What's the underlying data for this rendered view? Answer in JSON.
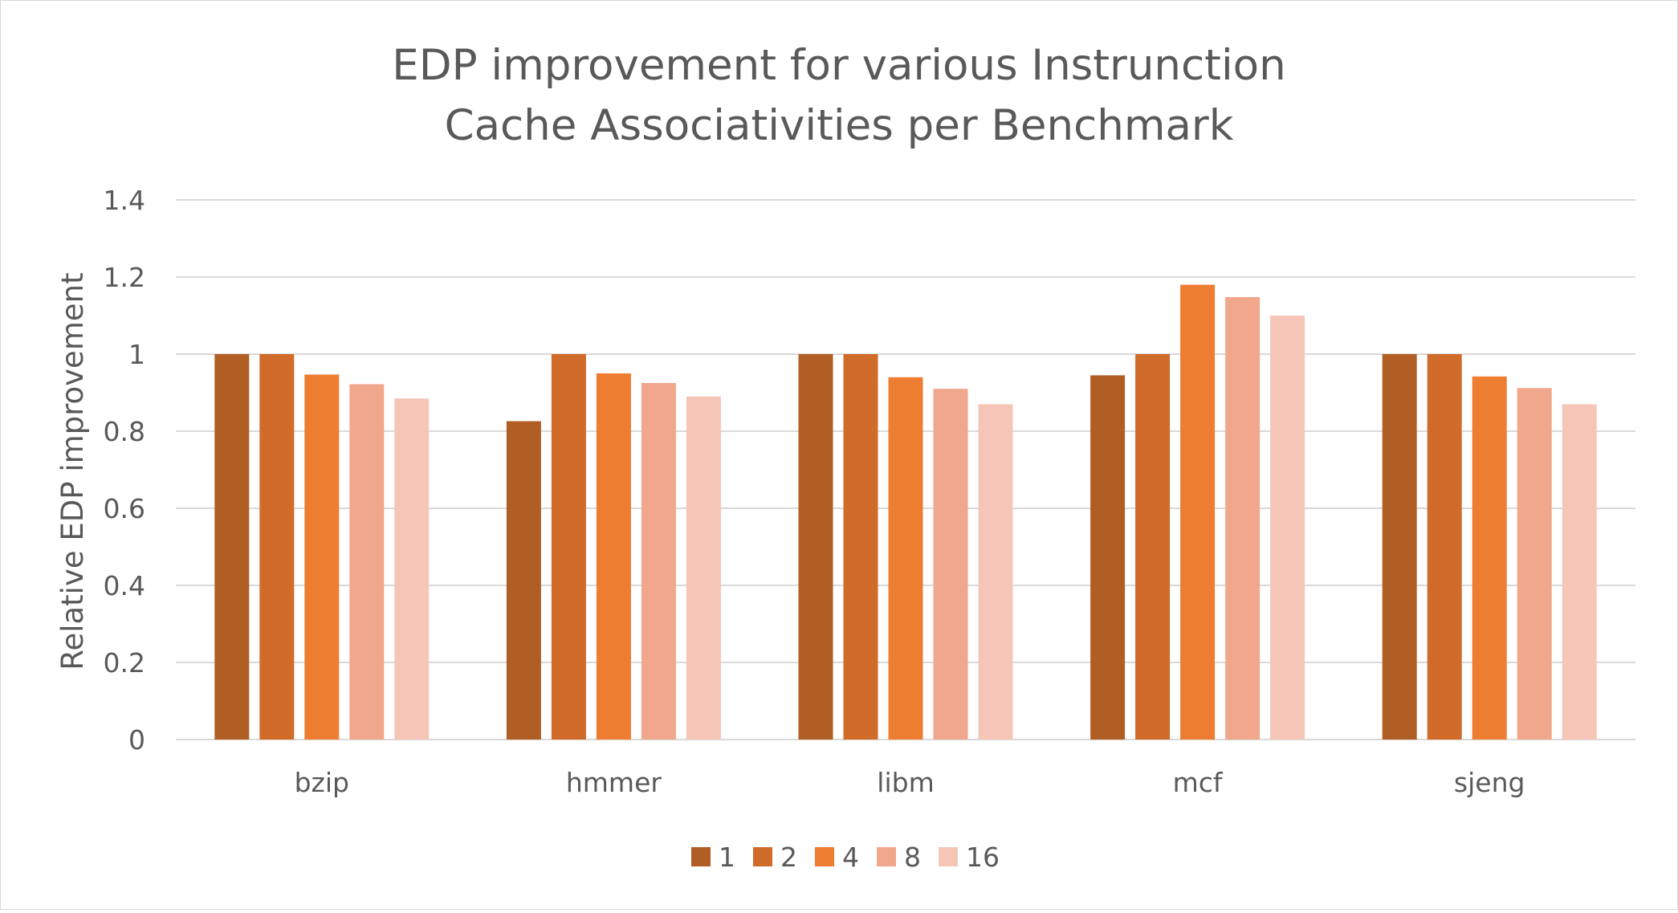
{
  "chart_data": {
    "type": "bar",
    "title_lines": [
      "EDP improvement for various Instrunction",
      "Cache Associativities per Benchmark"
    ],
    "xlabel": "",
    "ylabel": "Relative EDP improvement",
    "ylim": [
      0,
      1.4
    ],
    "yticks": [
      "0",
      "0.2",
      "0.4",
      "0.6",
      "0.8",
      "1",
      "1.2",
      "1.4"
    ],
    "ytick_values": [
      0,
      0.2,
      0.4,
      0.6,
      0.8,
      1.0,
      1.2,
      1.4
    ],
    "grid": true,
    "legend_position": "bottom",
    "categories": [
      "bzip",
      "hmmer",
      "libm",
      "mcf",
      "sjeng"
    ],
    "series": [
      {
        "name": "1",
        "color": "#b15e24",
        "values": [
          1.0,
          0.826,
          1.0,
          0.945,
          1.0
        ]
      },
      {
        "name": "2",
        "color": "#d06b29",
        "values": [
          1.0,
          1.0,
          1.0,
          1.0,
          1.0
        ]
      },
      {
        "name": "4",
        "color": "#ed7d31",
        "values": [
          0.947,
          0.95,
          0.94,
          1.18,
          0.942
        ]
      },
      {
        "name": "8",
        "color": "#f1a78b",
        "values": [
          0.922,
          0.925,
          0.91,
          1.148,
          0.912
        ]
      },
      {
        "name": "16",
        "color": "#f5c6b8",
        "values": [
          0.885,
          0.89,
          0.87,
          1.1,
          0.87
        ]
      }
    ]
  }
}
